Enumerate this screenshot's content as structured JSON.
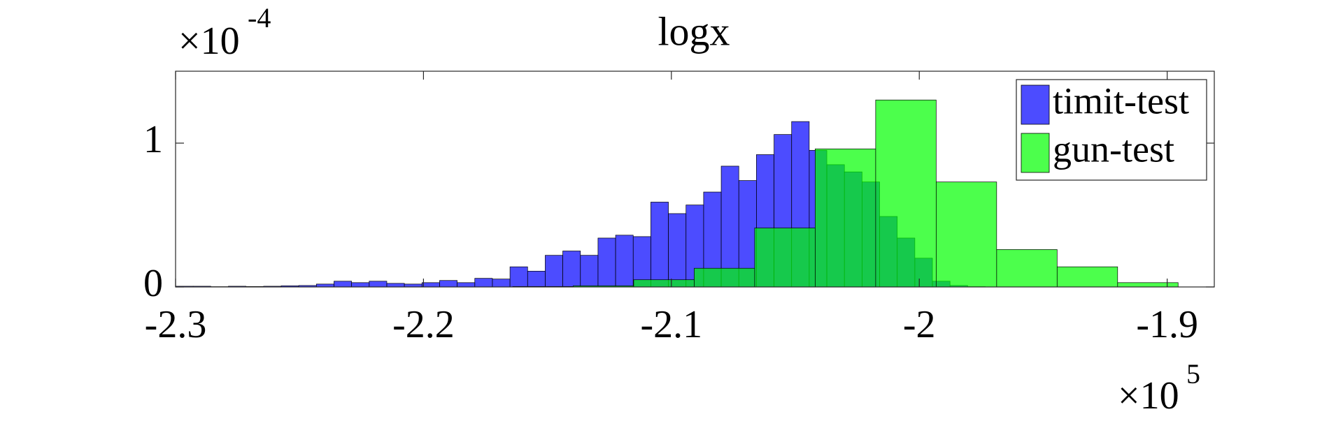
{
  "chart_data": {
    "type": "histogram",
    "title": "logx",
    "x_multiplier": {
      "text": "×10",
      "exponent": "5"
    },
    "y_multiplier": {
      "text": "×10",
      "exponent": "-4"
    },
    "xlim": [
      -2.3,
      -1.881
    ],
    "ylim": [
      0,
      1.5
    ],
    "xticks": [
      -2.3,
      -2.2,
      -2.1,
      -2,
      -1.9
    ],
    "yticks": [
      0,
      1
    ],
    "legend": "top-right",
    "series": [
      {
        "name": "timit-test",
        "color": "#0000ff",
        "bins": [
          -2.3,
          -2.2929,
          -2.2858,
          -2.2787,
          -2.2716,
          -2.2645,
          -2.2574,
          -2.2503,
          -2.2432,
          -2.2361,
          -2.229,
          -2.2219,
          -2.2148,
          -2.2077,
          -2.2006,
          -2.1935,
          -2.1864,
          -2.1793,
          -2.1722,
          -2.1651,
          -2.158,
          -2.1509,
          -2.1438,
          -2.1367,
          -2.1296,
          -2.1225,
          -2.1154,
          -2.1083,
          -2.1012,
          -2.0941,
          -2.087,
          -2.0799,
          -2.0728,
          -2.0657,
          -2.0586,
          -2.0515,
          -2.0444,
          -2.0373,
          -2.0302,
          -2.0231,
          -2.016,
          -2.0089,
          -2.0018,
          -1.9947,
          -1.9876,
          -1.9805,
          -1.9734
        ],
        "values": [
          0.005,
          0.005,
          0.002,
          0.005,
          0.003,
          0.005,
          0.008,
          0.01,
          0.02,
          0.04,
          0.03,
          0.04,
          0.025,
          0.02,
          0.03,
          0.045,
          0.03,
          0.06,
          0.055,
          0.14,
          0.11,
          0.22,
          0.25,
          0.22,
          0.34,
          0.36,
          0.35,
          0.59,
          0.51,
          0.57,
          0.66,
          0.84,
          0.74,
          0.92,
          1.06,
          1.15,
          0.95,
          0.85,
          0.8,
          0.73,
          0.49,
          0.34,
          0.2,
          0.04,
          0.01,
          0.002
        ]
      },
      {
        "name": "gun-test",
        "color": "#00ff00",
        "bins": [
          -2.164,
          -2.1396,
          -2.1152,
          -2.0908,
          -2.0664,
          -2.042,
          -2.0176,
          -1.9932,
          -1.9688,
          -1.9444,
          -1.92,
          -1.8956
        ],
        "values": [
          0.003,
          0.008,
          0.05,
          0.13,
          0.41,
          0.96,
          1.3,
          0.73,
          0.26,
          0.14,
          0.03
        ]
      }
    ]
  }
}
